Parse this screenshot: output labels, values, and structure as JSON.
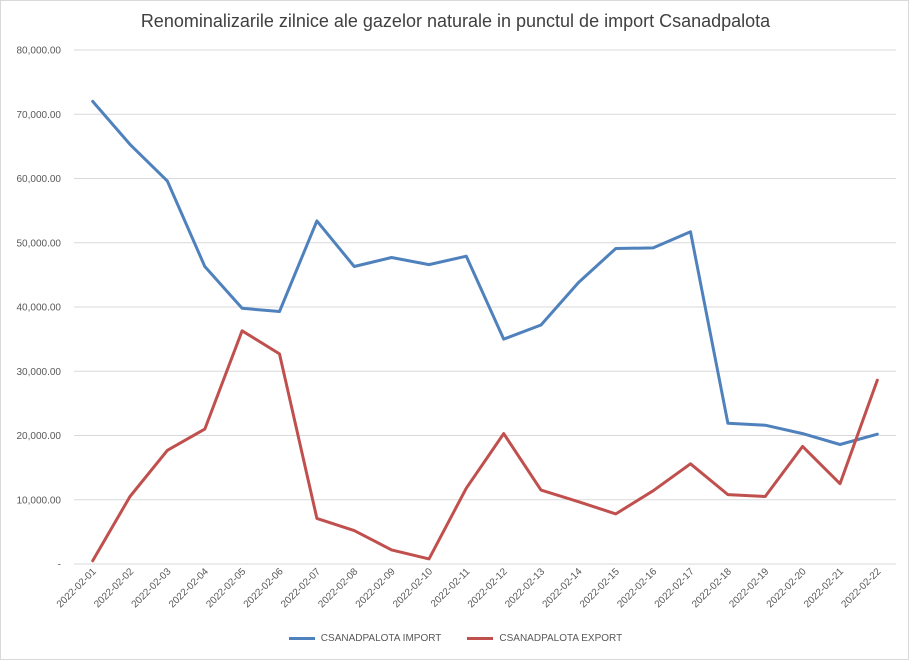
{
  "chart_data": {
    "type": "line",
    "title": "Renominalizarile zilnice ale gazelor naturale in punctul de import Csanadpalota",
    "xlabel": "",
    "ylabel": "",
    "ylim": [
      0,
      80000
    ],
    "yticks": [
      0,
      10000,
      20000,
      30000,
      40000,
      50000,
      60000,
      70000,
      80000
    ],
    "ytick_labels": [
      "-",
      "10,000.00",
      "20,000.00",
      "30,000.00",
      "40,000.00",
      "50,000.00",
      "60,000.00",
      "70,000.00",
      "80,000.00"
    ],
    "grid": true,
    "legend_position": "bottom",
    "categories": [
      "2022-02-01",
      "2022-02-02",
      "2022-02-03",
      "2022-02-04",
      "2022-02-05",
      "2022-02-06",
      "2022-02-07",
      "2022-02-08",
      "2022-02-09",
      "2022-02-10",
      "2022-02-11",
      "2022-02-12",
      "2022-02-13",
      "2022-02-14",
      "2022-02-15",
      "2022-02-16",
      "2022-02-17",
      "2022-02-18",
      "2022-02-19",
      "2022-02-20",
      "2022-02-21",
      "2022-02-22"
    ],
    "series": [
      {
        "name": "CSANADPALOTA IMPORT",
        "color": "#4f81bd",
        "values": [
          72000,
          65300,
          59600,
          46300,
          39800,
          39300,
          53400,
          46300,
          47700,
          46600,
          47900,
          35000,
          37200,
          43800,
          49100,
          49200,
          51700,
          21900,
          21600,
          20300,
          18600,
          20200
        ]
      },
      {
        "name": "CSANADPALOTA EXPORT",
        "color": "#c0504d",
        "values": [
          500,
          10500,
          17700,
          21000,
          36300,
          32700,
          7100,
          5200,
          2200,
          800,
          11800,
          20300,
          11500,
          9700,
          7800,
          11400,
          15600,
          10800,
          10500,
          18300,
          12500,
          28600
        ]
      }
    ]
  }
}
